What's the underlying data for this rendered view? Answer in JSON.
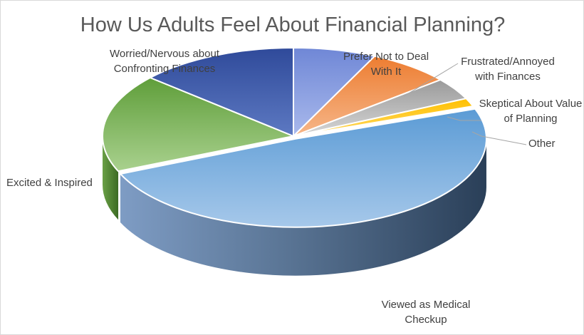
{
  "chart_data": {
    "type": "pie",
    "title": "How Us Adults Feel About Financial Planning?",
    "categories": [
      "Prefer Not to Deal With It",
      "Frustrated/Annoyed with Finances",
      "Skeptical About Value of Planning",
      "Other",
      "Viewed as Medical Checkup",
      "Excited & Inspired",
      "Worried/Nervous about Confronting Finances"
    ],
    "values": [
      7,
      7,
      4,
      1.5,
      49,
      18,
      13.5
    ],
    "colors": [
      "#7f96dc",
      "#ed7d31",
      "#a5a5a5",
      "#ffc000",
      "#5b9bd5",
      "#70ad47",
      "#2f4f9e"
    ],
    "legend": "none",
    "style": "3d"
  }
}
